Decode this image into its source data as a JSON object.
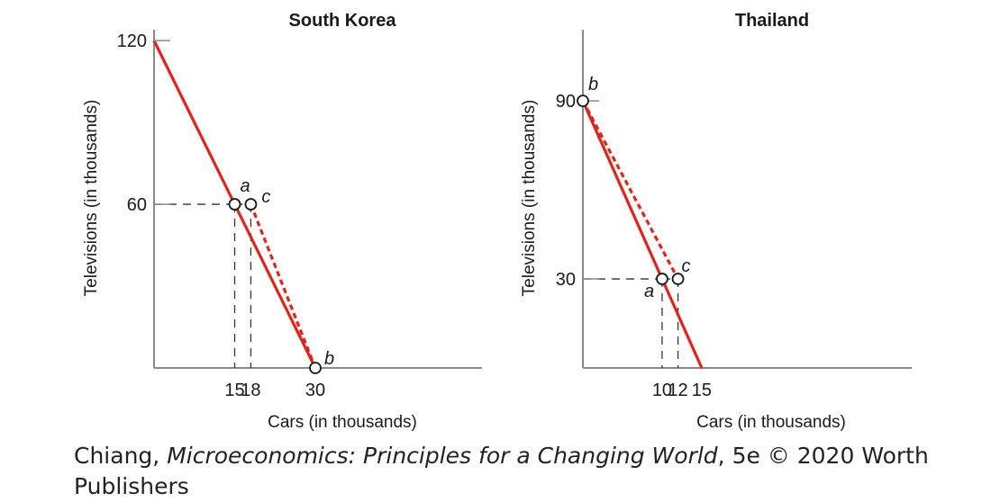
{
  "chart_data": [
    {
      "type": "line",
      "title": "South Korea",
      "xlabel": "Cars (in thousands)",
      "ylabel": "Televisions (in thousands)",
      "x_ticks": [
        "15",
        "18",
        "30"
      ],
      "y_ticks": [
        "120",
        "60"
      ],
      "xlim": [
        0,
        61
      ],
      "ylim": [
        0,
        124
      ],
      "series": [
        {
          "style": "solid",
          "color": "#e2231a",
          "points": [
            [
              0,
              120
            ],
            [
              30,
              0
            ]
          ]
        },
        {
          "style": "dashed",
          "color": "#e2231a",
          "points": [
            [
              18,
              60
            ],
            [
              30,
              0
            ]
          ]
        }
      ],
      "points": [
        {
          "label": "a",
          "x": 15,
          "y": 60
        },
        {
          "label": "c",
          "x": 18,
          "y": 60
        },
        {
          "label": "b",
          "x": 30,
          "y": 0
        }
      ]
    },
    {
      "type": "line",
      "title": "Thailand",
      "xlabel": "Cars (in thousands)",
      "ylabel": "Televisions (in thousands)",
      "x_ticks": [
        "10",
        "12",
        "15"
      ],
      "y_ticks": [
        "90",
        "30"
      ],
      "xlim": [
        0,
        41.5
      ],
      "ylim": [
        0,
        114
      ],
      "series": [
        {
          "style": "solid",
          "color": "#e2231a",
          "points": [
            [
              0,
              90
            ],
            [
              15,
              0
            ]
          ]
        },
        {
          "style": "dashed",
          "color": "#e2231a",
          "points": [
            [
              0,
              90
            ],
            [
              12,
              30
            ]
          ]
        }
      ],
      "points": [
        {
          "label": "b",
          "x": 0,
          "y": 90
        },
        {
          "label": "a",
          "x": 10,
          "y": 30
        },
        {
          "label": "c",
          "x": 12,
          "y": 30
        }
      ]
    }
  ],
  "caption": {
    "author": "Chiang, ",
    "book_title": "Microeconomics: Principles for a Changing World",
    "rest": ", 5e © 2020 Worth Publishers"
  }
}
